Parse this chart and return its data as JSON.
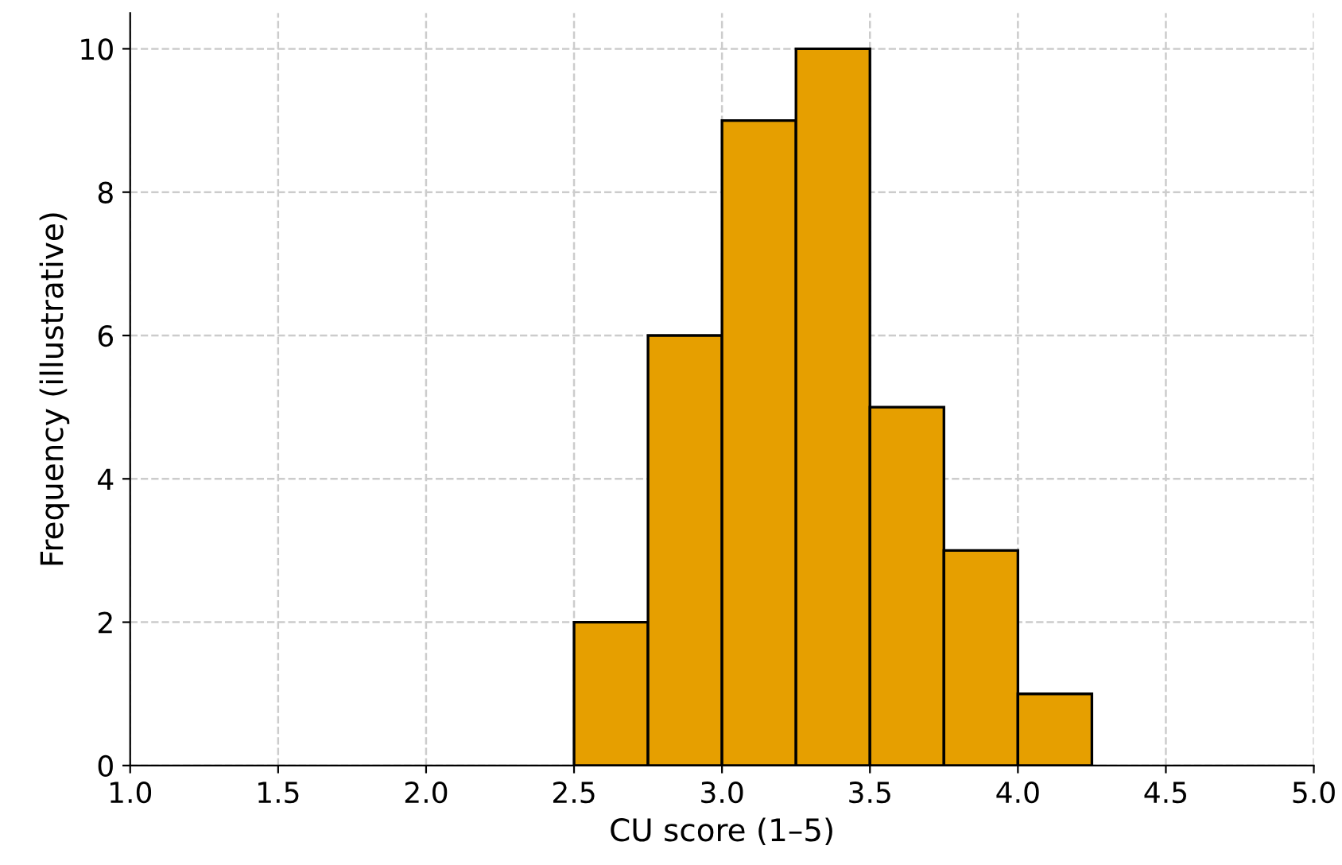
{
  "chart_data": {
    "type": "histogram",
    "xlabel": "CU score (1–5)",
    "ylabel": "Frequency (illustrative)",
    "bins": [
      2.5,
      2.75,
      3.0,
      3.25,
      3.5,
      3.75,
      4.0,
      4.25
    ],
    "values": [
      2,
      6,
      9,
      10,
      5,
      3,
      1
    ],
    "color": "#e69f00",
    "xlim": [
      1.0,
      5.0
    ],
    "xticks": [
      {
        "value": 1.0,
        "label": "1.0"
      },
      {
        "value": 1.5,
        "label": "1.5"
      },
      {
        "value": 2.0,
        "label": "2.0"
      },
      {
        "value": 2.5,
        "label": "2.5"
      },
      {
        "value": 3.0,
        "label": "3.0"
      },
      {
        "value": 3.5,
        "label": "3.5"
      },
      {
        "value": 4.0,
        "label": "4.0"
      },
      {
        "value": 4.5,
        "label": "4.5"
      },
      {
        "value": 5.0,
        "label": "5.0"
      }
    ],
    "ylim": [
      0,
      10.5
    ],
    "yticks": [
      0,
      2,
      4,
      6,
      8,
      10
    ],
    "grid": true
  }
}
